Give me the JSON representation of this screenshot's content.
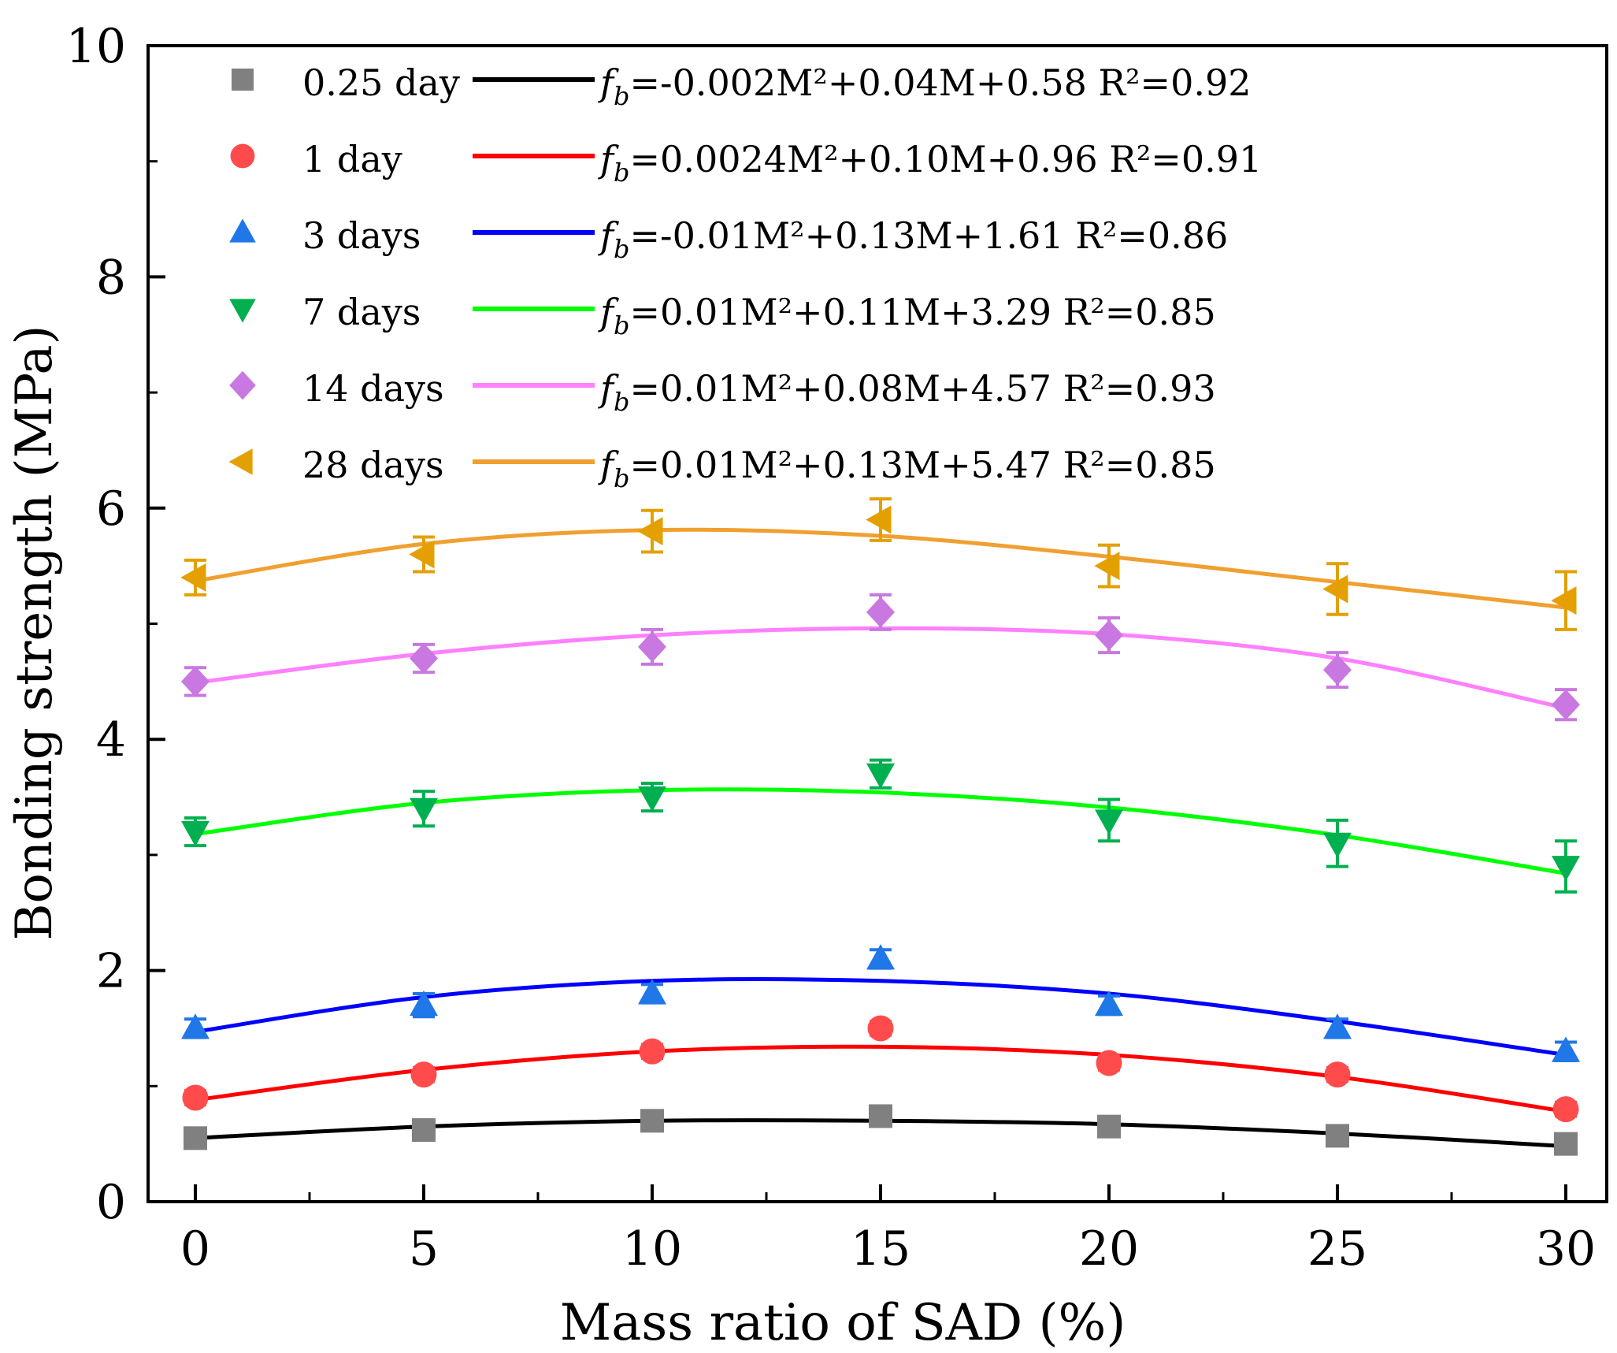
{
  "chart_data": {
    "type": "scatter",
    "title": "",
    "xlabel": "Mass ratio of SAD (%)",
    "ylabel": "Bonding strength (MPa)",
    "xlim": [
      -1,
      31
    ],
    "ylim": [
      0,
      10
    ],
    "xticks": [
      0,
      5,
      10,
      15,
      20,
      25,
      30
    ],
    "yticks": [
      0,
      2,
      4,
      6,
      8,
      10
    ],
    "xtick_labels": [
      "0",
      "5",
      "10",
      "15",
      "20",
      "25",
      "30"
    ],
    "ytick_labels": [
      "0",
      "2",
      "4",
      "6",
      "8",
      "10"
    ],
    "legend_position": "top-left",
    "x": [
      0,
      5,
      10,
      15,
      20,
      25,
      30
    ],
    "series": [
      {
        "name": "0.25 day",
        "marker": "square",
        "marker_color": "#808080",
        "fit_color": "#000000",
        "values": [
          0.55,
          0.62,
          0.7,
          0.74,
          0.65,
          0.57,
          0.5
        ],
        "errors": [
          0.05,
          0.05,
          0.05,
          0.05,
          0.05,
          0.05,
          0.05
        ],
        "fit": [
          0.55,
          0.65,
          0.7,
          0.7,
          0.67,
          0.59,
          0.48
        ],
        "equation": {
          "lhs": "f",
          "sub": "b",
          "text": "=-0.002M²+0.04M+0.58 R²=0.92"
        }
      },
      {
        "name": "1 day",
        "marker": "circle",
        "marker_color": "#ff4b4b",
        "fit_color": "#ff0000",
        "values": [
          0.9,
          1.1,
          1.3,
          1.5,
          1.2,
          1.1,
          0.8
        ],
        "errors": [
          0.06,
          0.06,
          0.06,
          0.06,
          0.06,
          0.06,
          0.06
        ],
        "fit": [
          0.88,
          1.14,
          1.3,
          1.34,
          1.27,
          1.08,
          0.78
        ],
        "equation": {
          "lhs": "f",
          "sub": "b",
          "text": "=0.0024M²+0.10M+0.96 R²=0.91"
        }
      },
      {
        "name": "3 days",
        "marker": "triangle-up",
        "marker_color": "#1f77e8",
        "fit_color": "#0000ff",
        "values": [
          1.5,
          1.7,
          1.8,
          2.1,
          1.7,
          1.5,
          1.3
        ],
        "errors": [
          0.08,
          0.1,
          0.08,
          0.08,
          0.08,
          0.08,
          0.08
        ],
        "fit": [
          1.47,
          1.77,
          1.91,
          1.91,
          1.8,
          1.56,
          1.27
        ],
        "equation": {
          "lhs": "f",
          "sub": "b",
          "text": "=-0.01M²+0.13M+1.61 R²=0.86"
        }
      },
      {
        "name": "7 days",
        "marker": "triangle-down",
        "marker_color": "#00b050",
        "fit_color": "#00ff00",
        "values": [
          3.2,
          3.4,
          3.5,
          3.7,
          3.3,
          3.1,
          2.9
        ],
        "errors": [
          0.12,
          0.15,
          0.12,
          0.12,
          0.18,
          0.2,
          0.22
        ],
        "fit": [
          3.18,
          3.45,
          3.56,
          3.54,
          3.41,
          3.17,
          2.84
        ],
        "equation": {
          "lhs": "f",
          "sub": "b",
          "text": "=0.01M²+0.11M+3.29 R²=0.85"
        }
      },
      {
        "name": "14 days",
        "marker": "diamond",
        "marker_color": "#c878e0",
        "fit_color": "#ff80ff",
        "values": [
          4.5,
          4.7,
          4.8,
          5.1,
          4.9,
          4.6,
          4.3
        ],
        "errors": [
          0.12,
          0.12,
          0.15,
          0.15,
          0.15,
          0.15,
          0.13
        ],
        "fit": [
          4.49,
          4.74,
          4.9,
          4.96,
          4.91,
          4.7,
          4.27
        ],
        "equation": {
          "lhs": "f",
          "sub": "b",
          "text": "=0.01M²+0.08M+4.57 R²=0.93"
        }
      },
      {
        "name": "28 days",
        "marker": "triangle-left",
        "marker_color": "#e3a000",
        "fit_color": "#f0a030",
        "values": [
          5.4,
          5.6,
          5.8,
          5.9,
          5.5,
          5.3,
          5.2
        ],
        "errors": [
          0.15,
          0.15,
          0.18,
          0.18,
          0.18,
          0.22,
          0.25
        ],
        "fit": [
          5.37,
          5.69,
          5.81,
          5.76,
          5.58,
          5.36,
          5.14
        ],
        "equation": {
          "lhs": "f",
          "sub": "b",
          "text": "=0.01M²+0.13M+5.47 R²=0.85"
        }
      }
    ]
  }
}
